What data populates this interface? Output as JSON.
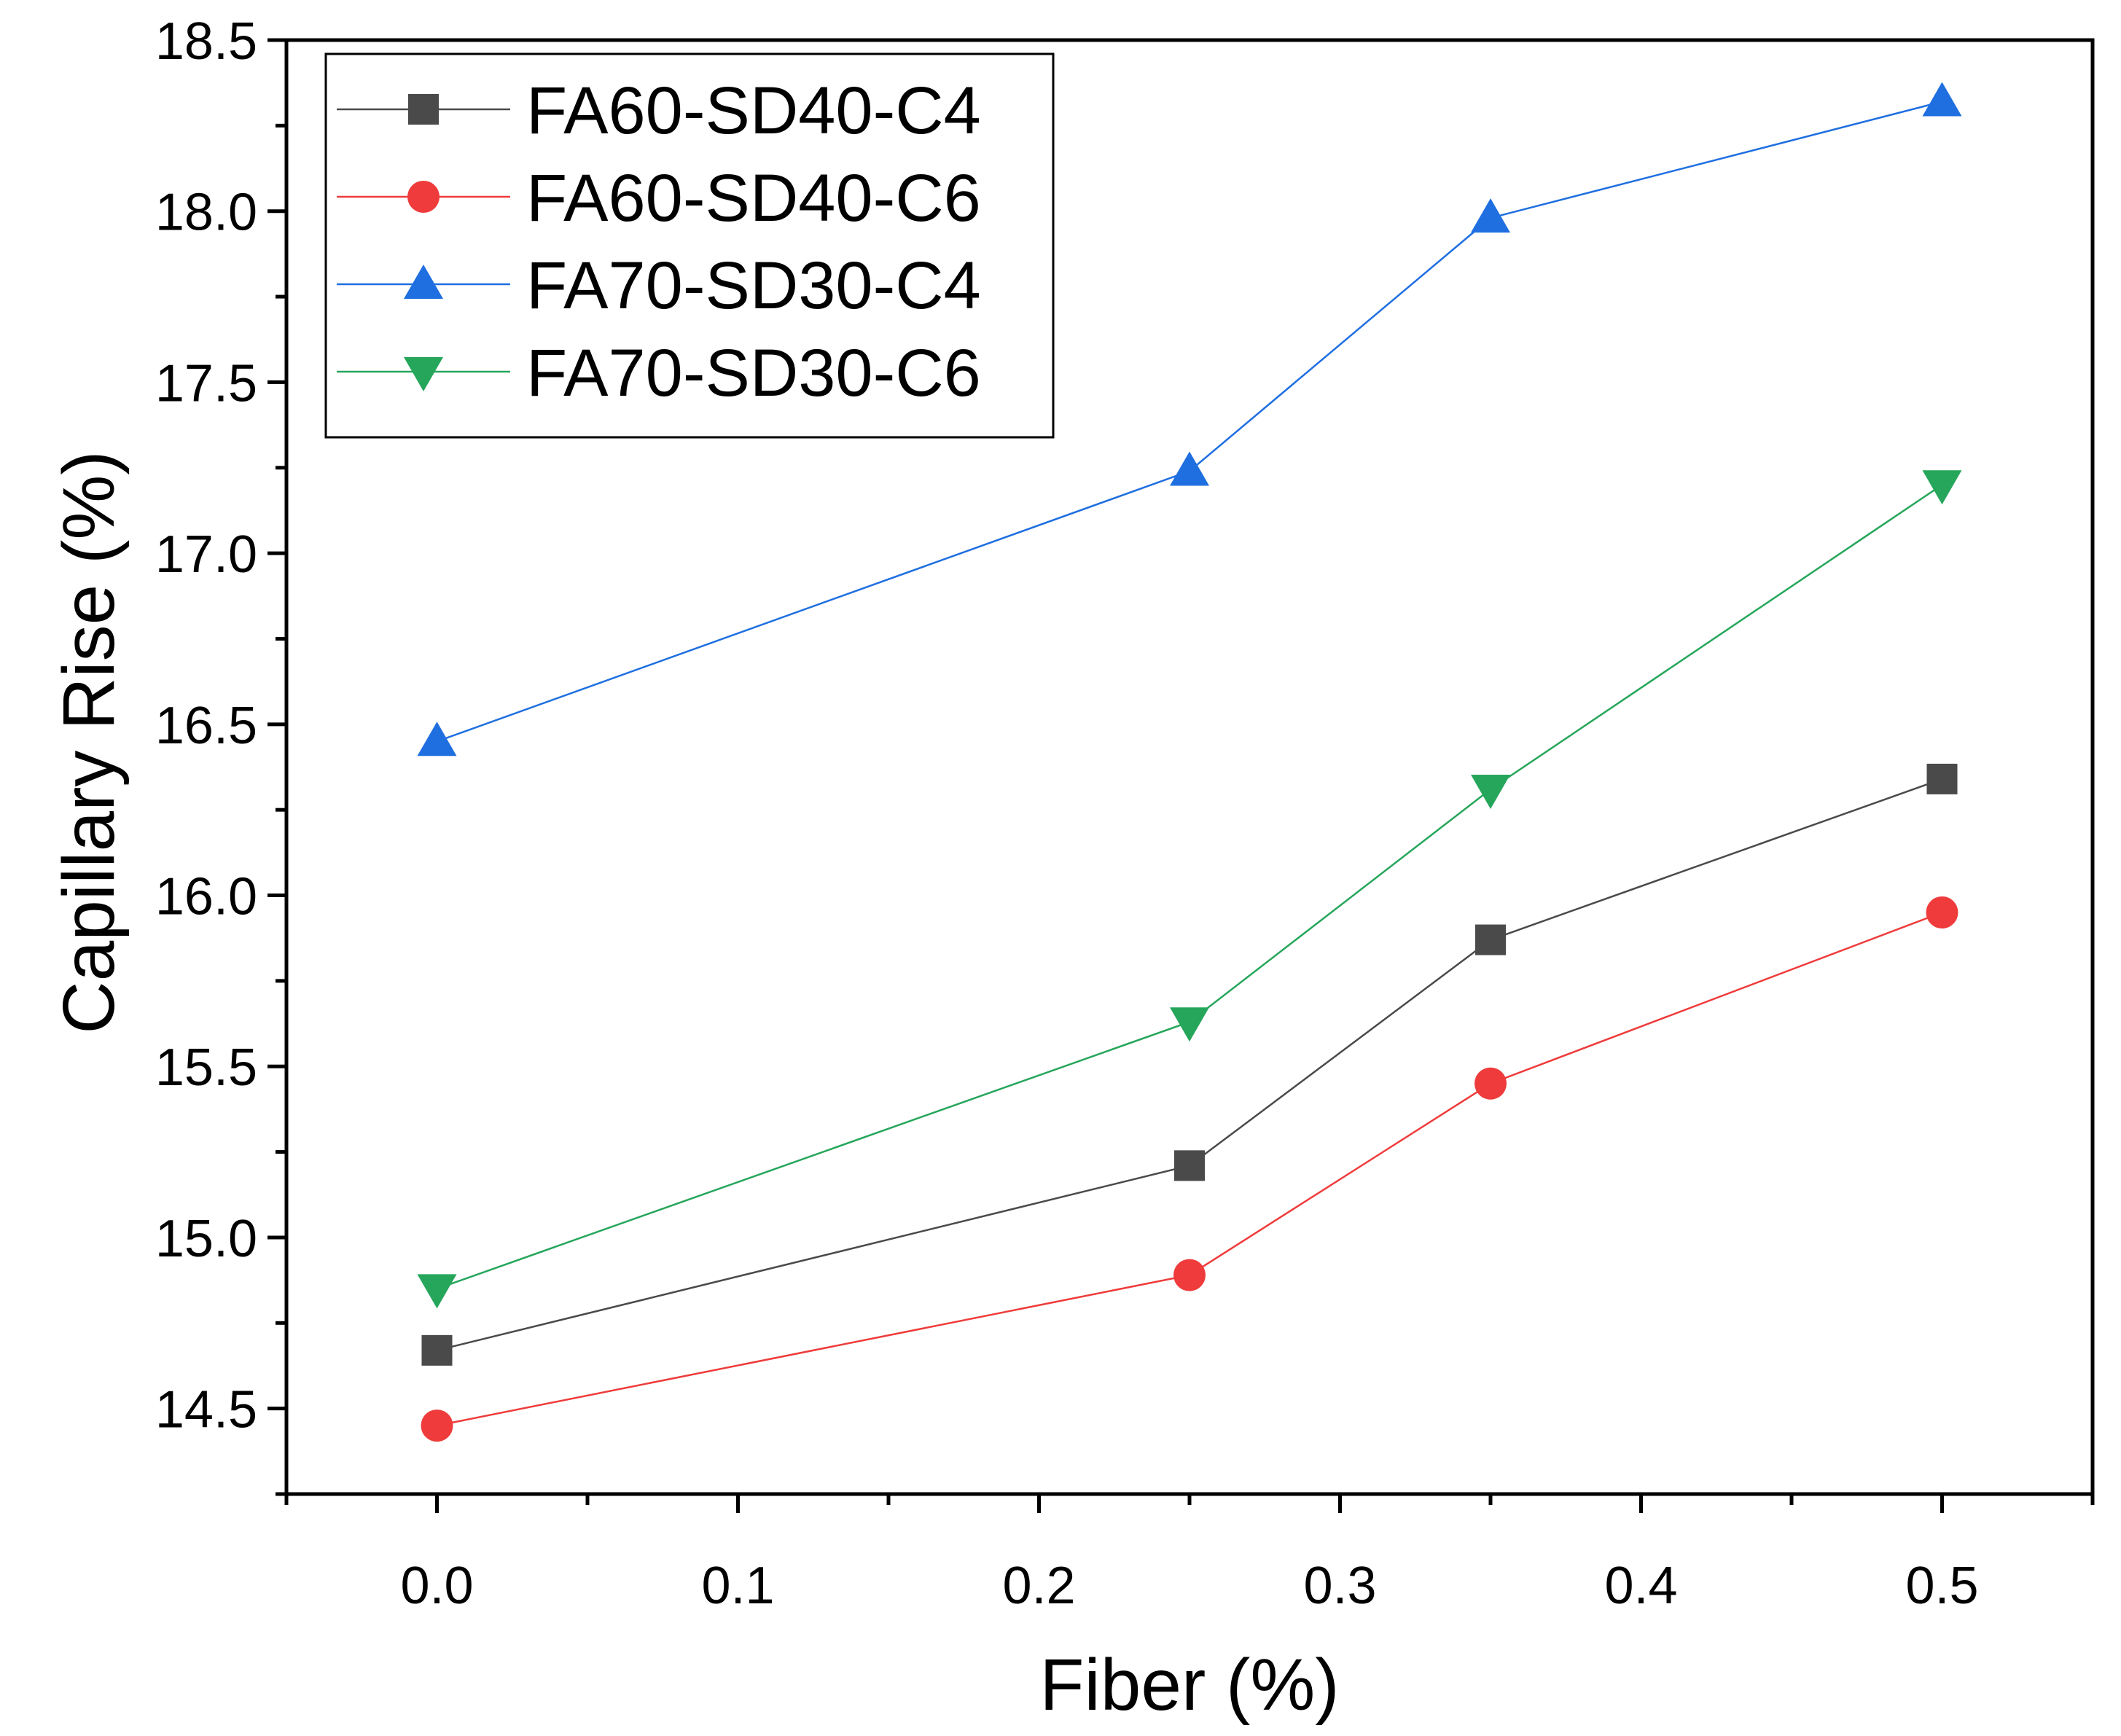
{
  "chart_data": {
    "type": "line",
    "title": "",
    "xlabel": "Fiber (%)",
    "ylabel": "Capillary Rise (%)",
    "xlim": [
      -0.05,
      0.55
    ],
    "ylim": [
      14.25,
      18.5
    ],
    "xticks": [
      "0.0",
      "0.1",
      "0.2",
      "0.3",
      "0.4",
      "0.5"
    ],
    "yticks": [
      "14.5",
      "15.0",
      "15.5",
      "16.0",
      "16.5",
      "17.0",
      "17.5",
      "18.0",
      "18.5"
    ],
    "grid": false,
    "legend_position": "top-left",
    "x": [
      0.0,
      0.25,
      0.35,
      0.5
    ],
    "series": [
      {
        "name": "FA60-SD40-C4",
        "marker": "square",
        "color": "#4a4a4a",
        "values": [
          14.67,
          15.21,
          15.87,
          16.34
        ]
      },
      {
        "name": "FA60-SD40-C6",
        "marker": "circle",
        "color": "#ef3b3b",
        "values": [
          14.45,
          14.89,
          15.45,
          15.95
        ]
      },
      {
        "name": "FA70-SD30-C4",
        "marker": "triangle-up",
        "color": "#1f6fe0",
        "values": [
          16.45,
          17.24,
          17.98,
          18.32
        ]
      },
      {
        "name": "FA70-SD30-C6",
        "marker": "triangle-down",
        "color": "#26a65b",
        "values": [
          14.85,
          15.63,
          16.31,
          17.2
        ]
      }
    ]
  }
}
